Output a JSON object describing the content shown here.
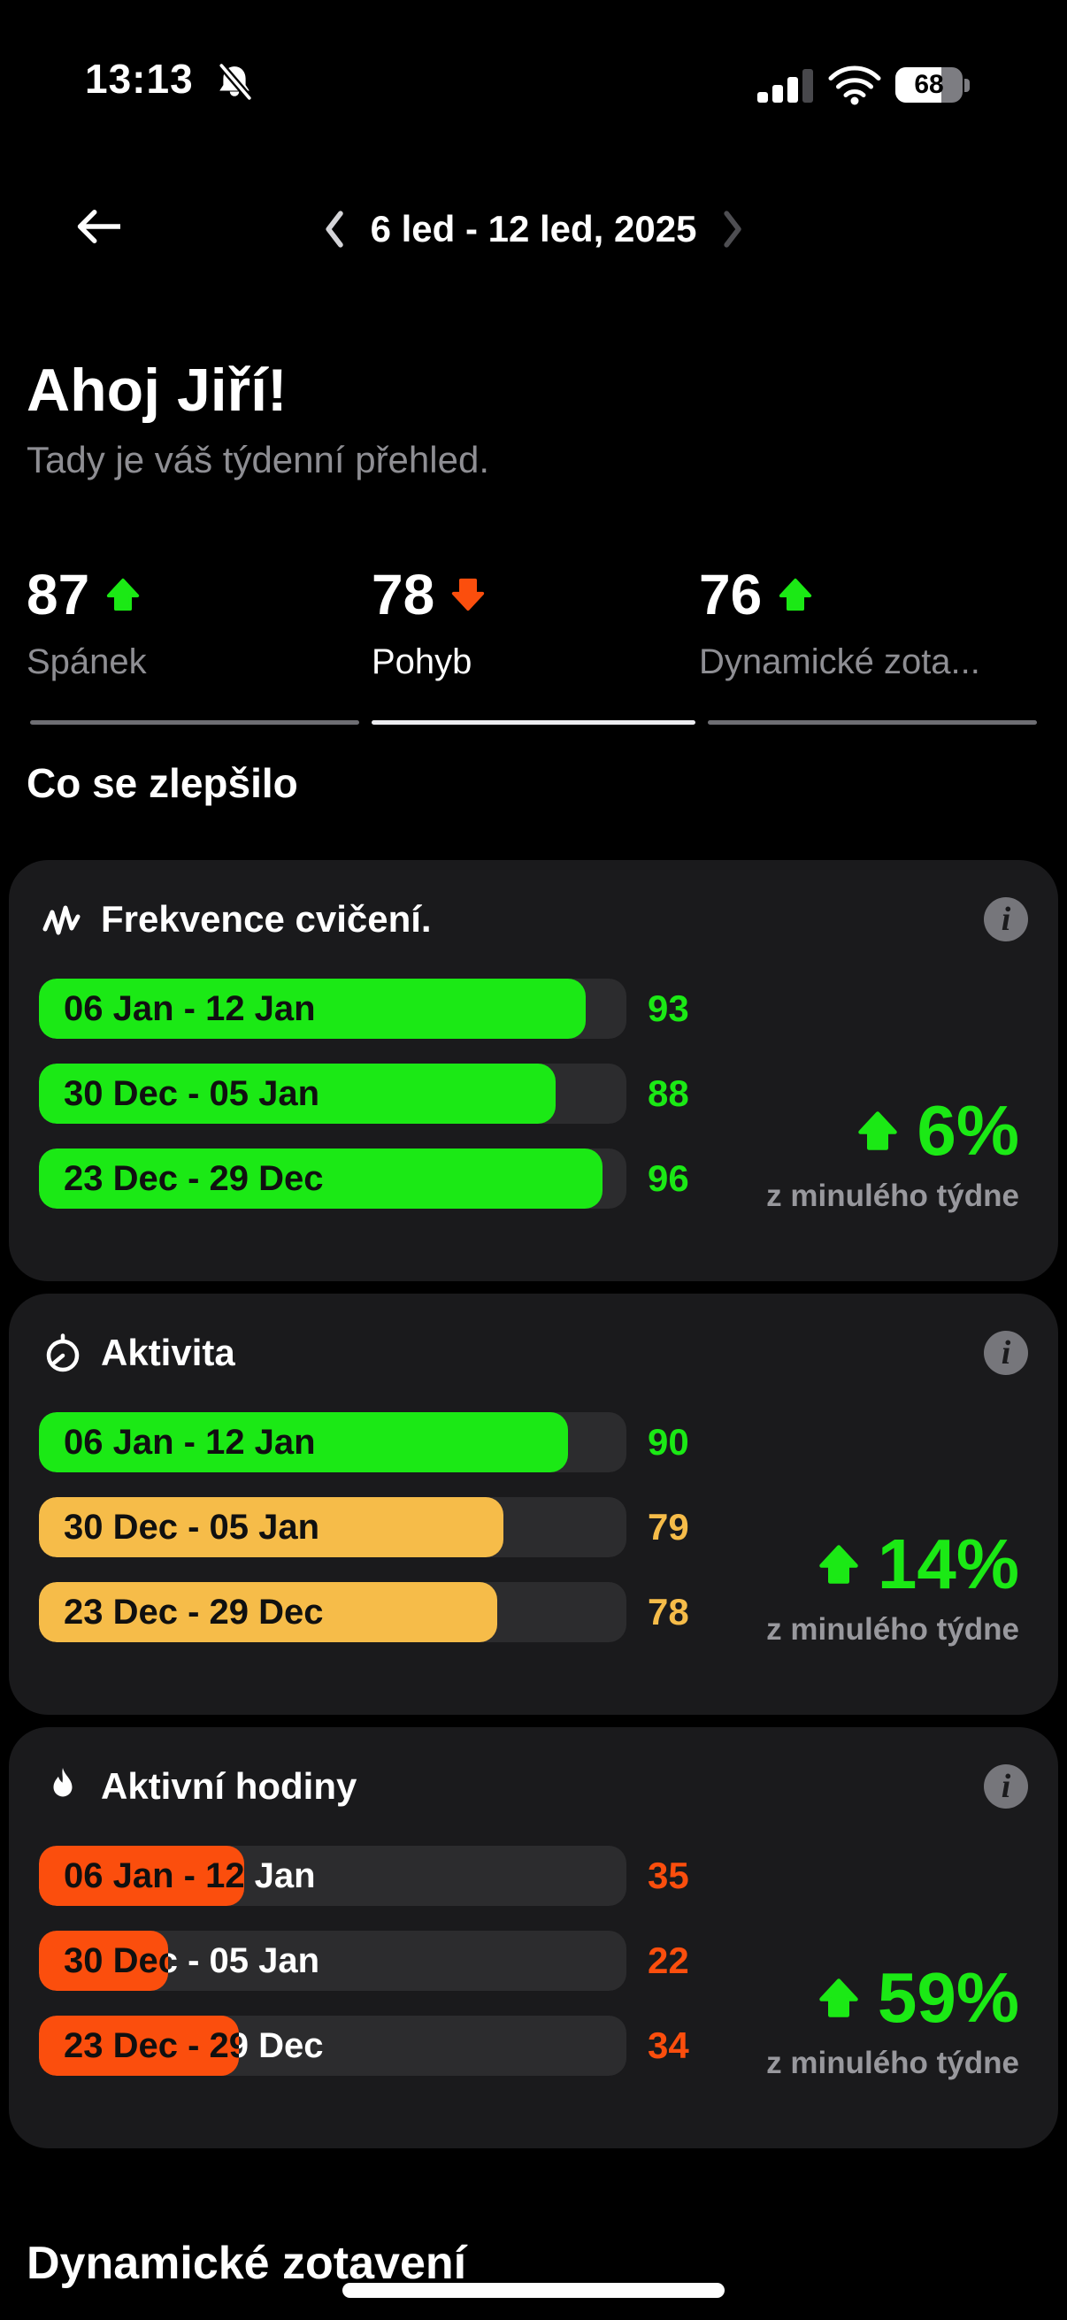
{
  "status_bar": {
    "time": "13:13",
    "battery": "68"
  },
  "nav": {
    "date_range": "6 led - 12 led, 2025"
  },
  "greeting": {
    "title": "Ahoj Jiří!",
    "subtitle": "Tady je váš týdenní přehled."
  },
  "metrics_tabs": [
    {
      "value": "87",
      "trend": "up",
      "label": "Spánek",
      "state": "inactive"
    },
    {
      "value": "78",
      "trend": "down",
      "label": "Pohyb",
      "state": "active"
    },
    {
      "value": "76",
      "trend": "up",
      "label": "Dynamické zota...",
      "state": "inactive"
    }
  ],
  "section": {
    "title": "Co se zlepšilo"
  },
  "cards": [
    {
      "title": "Frekvence cvičení.",
      "icon": "pulse-icon",
      "rows": [
        {
          "label": "06 Jan - 12 Jan",
          "value": 93,
          "color": "green"
        },
        {
          "label": "30 Dec - 05 Jan",
          "value": 88,
          "color": "green"
        },
        {
          "label": "23 Dec - 29 Dec",
          "value": 96,
          "color": "green"
        }
      ],
      "change": "6%",
      "change_trend": "up",
      "change_caption": "z minulého týdne"
    },
    {
      "title": "Aktivita",
      "icon": "stopwatch-icon",
      "rows": [
        {
          "label": "06 Jan - 12 Jan",
          "value": 90,
          "color": "green"
        },
        {
          "label": "30 Dec - 05 Jan",
          "value": 79,
          "color": "amber"
        },
        {
          "label": "23 Dec - 29 Dec",
          "value": 78,
          "color": "amber"
        }
      ],
      "change": "14%",
      "change_trend": "up",
      "change_caption": "z minulého týdne"
    },
    {
      "title": "Aktivní hodiny",
      "icon": "flame-icon",
      "rows": [
        {
          "label": "06 Jan - 12 Jan",
          "value": 35,
          "color": "orange"
        },
        {
          "label": "30 Dec - 05 Jan",
          "value": 22,
          "color": "orange"
        },
        {
          "label": "23 Dec - 29 Dec",
          "value": 34,
          "color": "orange"
        }
      ],
      "change": "59%",
      "change_trend": "up",
      "change_caption": "z minulého týdne"
    }
  ],
  "next_section": {
    "title": "Dynamické zotavení"
  },
  "colors": {
    "green": "#1BE915",
    "amber": "#F6BC49",
    "orange": "#FB4E0D",
    "muted": "#8E8E93"
  }
}
